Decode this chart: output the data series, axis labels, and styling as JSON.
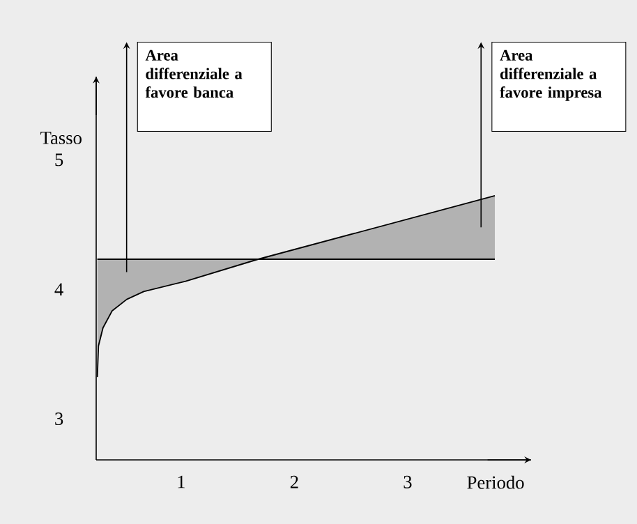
{
  "chart_data": {
    "type": "line",
    "ylabel": "Tasso",
    "xlabel": "Periodo",
    "xlim": [
      0.25,
      4.09
    ],
    "ylim": [
      2.7,
      5.66
    ],
    "xticks": [
      1,
      2,
      3
    ],
    "yticks": [
      3,
      4,
      5
    ],
    "grid": false,
    "marker": "none",
    "annotations": [
      "Area differenziale a favore banca",
      "Area differenziale a favore impresa"
    ],
    "series": [
      {
        "color": "#000000",
        "x": [
          0.26,
          0.27,
          0.31,
          0.39,
          0.52,
          0.67,
          1.04,
          1.68,
          3.77
        ],
        "values": [
          3.34,
          3.58,
          3.72,
          3.85,
          3.94,
          4.0,
          4.08,
          4.25,
          4.74
        ],
        "lower": [
          3.34,
          3.58,
          3.72,
          3.85,
          3.94,
          4.0,
          4.08,
          4.25,
          4.25
        ],
        "upper": [
          4.25,
          4.25,
          4.25,
          4.25,
          4.25,
          4.25,
          4.25,
          4.25,
          4.74
        ]
      },
      {
        "color": "#000000",
        "x": [
          0.26,
          3.77
        ],
        "values": [
          4.25,
          4.25
        ]
      }
    ]
  }
}
